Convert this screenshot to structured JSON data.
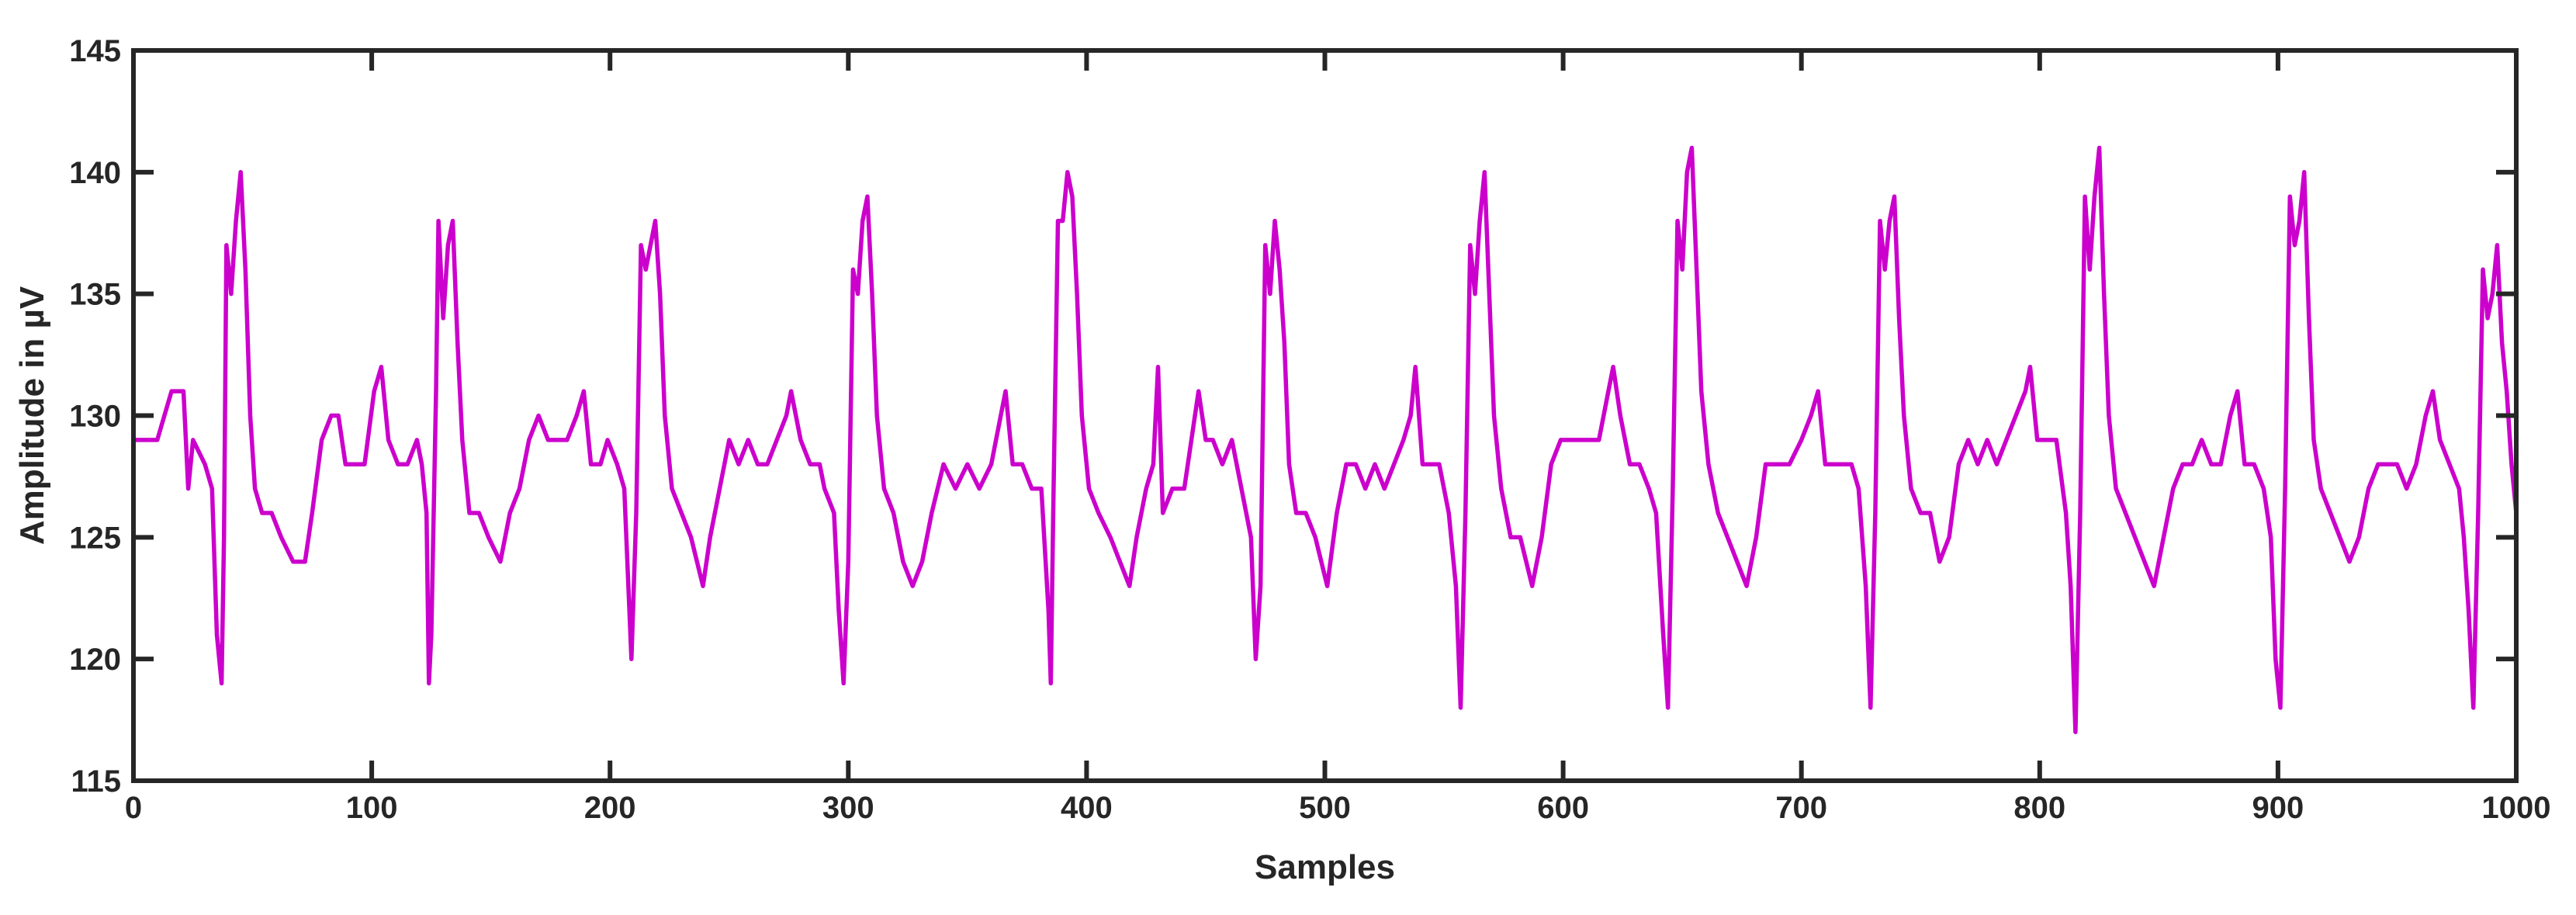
{
  "chart_data": {
    "type": "line",
    "title": "",
    "xlabel": "Samples",
    "ylabel": "Amplitude in µV",
    "xlim": [
      0,
      1000
    ],
    "ylim": [
      115,
      145
    ],
    "xticks": [
      0,
      100,
      200,
      300,
      400,
      500,
      600,
      700,
      800,
      900,
      1000
    ],
    "yticks": [
      115,
      120,
      125,
      130,
      135,
      140,
      145
    ],
    "grid": false,
    "legend": "none",
    "line_color": "#cc00cc",
    "series": [
      {
        "points": [
          [
            0,
            129
          ],
          [
            10,
            129
          ],
          [
            16,
            131
          ],
          [
            21,
            131
          ],
          [
            23,
            127
          ],
          [
            25,
            129
          ],
          [
            30,
            128
          ],
          [
            33,
            127
          ],
          [
            35,
            121
          ],
          [
            37,
            119
          ],
          [
            38,
            125
          ],
          [
            39,
            137
          ],
          [
            41,
            135
          ],
          [
            43,
            138
          ],
          [
            45,
            140
          ],
          [
            47,
            136
          ],
          [
            49,
            130
          ],
          [
            51,
            127
          ],
          [
            54,
            126
          ],
          [
            58,
            126
          ],
          [
            62,
            125
          ],
          [
            67,
            124
          ],
          [
            72,
            124
          ],
          [
            75,
            126
          ],
          [
            79,
            129
          ],
          [
            83,
            130
          ],
          [
            86,
            130
          ],
          [
            89,
            128
          ],
          [
            93,
            128
          ],
          [
            97,
            128
          ],
          [
            101,
            131
          ],
          [
            104,
            132
          ],
          [
            107,
            129
          ],
          [
            111,
            128
          ],
          [
            115,
            128
          ],
          [
            119,
            129
          ],
          [
            121,
            128
          ],
          [
            123,
            126
          ],
          [
            124,
            119
          ],
          [
            125,
            121
          ],
          [
            127,
            131
          ],
          [
            128,
            138
          ],
          [
            130,
            134
          ],
          [
            132,
            137
          ],
          [
            134,
            138
          ],
          [
            136,
            133
          ],
          [
            138,
            129
          ],
          [
            141,
            126
          ],
          [
            145,
            126
          ],
          [
            149,
            125
          ],
          [
            154,
            124
          ],
          [
            158,
            126
          ],
          [
            162,
            127
          ],
          [
            166,
            129
          ],
          [
            170,
            130
          ],
          [
            174,
            129
          ],
          [
            178,
            129
          ],
          [
            182,
            129
          ],
          [
            186,
            130
          ],
          [
            189,
            131
          ],
          [
            192,
            128
          ],
          [
            196,
            128
          ],
          [
            199,
            129
          ],
          [
            203,
            128
          ],
          [
            206,
            127
          ],
          [
            209,
            120
          ],
          [
            211,
            126
          ],
          [
            213,
            137
          ],
          [
            215,
            136
          ],
          [
            217,
            137
          ],
          [
            219,
            138
          ],
          [
            221,
            135
          ],
          [
            223,
            130
          ],
          [
            226,
            127
          ],
          [
            230,
            126
          ],
          [
            234,
            125
          ],
          [
            239,
            123
          ],
          [
            242,
            125
          ],
          [
            246,
            127
          ],
          [
            250,
            129
          ],
          [
            254,
            128
          ],
          [
            258,
            129
          ],
          [
            262,
            128
          ],
          [
            266,
            128
          ],
          [
            270,
            129
          ],
          [
            274,
            130
          ],
          [
            276,
            131
          ],
          [
            280,
            129
          ],
          [
            284,
            128
          ],
          [
            288,
            128
          ],
          [
            290,
            127
          ],
          [
            294,
            126
          ],
          [
            296,
            122
          ],
          [
            298,
            119
          ],
          [
            300,
            124
          ],
          [
            302,
            136
          ],
          [
            304,
            135
          ],
          [
            306,
            138
          ],
          [
            308,
            139
          ],
          [
            310,
            135
          ],
          [
            312,
            130
          ],
          [
            315,
            127
          ],
          [
            319,
            126
          ],
          [
            323,
            124
          ],
          [
            327,
            123
          ],
          [
            331,
            124
          ],
          [
            335,
            126
          ],
          [
            340,
            128
          ],
          [
            345,
            127
          ],
          [
            350,
            128
          ],
          [
            355,
            127
          ],
          [
            360,
            128
          ],
          [
            364,
            130
          ],
          [
            366,
            131
          ],
          [
            369,
            128
          ],
          [
            373,
            128
          ],
          [
            377,
            127
          ],
          [
            381,
            127
          ],
          [
            384,
            122
          ],
          [
            385,
            119
          ],
          [
            386,
            126
          ],
          [
            388,
            138
          ],
          [
            390,
            138
          ],
          [
            392,
            140
          ],
          [
            394,
            139
          ],
          [
            396,
            135
          ],
          [
            398,
            130
          ],
          [
            401,
            127
          ],
          [
            405,
            126
          ],
          [
            410,
            125
          ],
          [
            414,
            124
          ],
          [
            418,
            123
          ],
          [
            421,
            125
          ],
          [
            425,
            127
          ],
          [
            428,
            128
          ],
          [
            430,
            132
          ],
          [
            432,
            126
          ],
          [
            436,
            127
          ],
          [
            441,
            127
          ],
          [
            444,
            129
          ],
          [
            447,
            131
          ],
          [
            450,
            129
          ],
          [
            453,
            129
          ],
          [
            457,
            128
          ],
          [
            461,
            129
          ],
          [
            465,
            127
          ],
          [
            469,
            125
          ],
          [
            471,
            120
          ],
          [
            473,
            123
          ],
          [
            475,
            137
          ],
          [
            477,
            135
          ],
          [
            479,
            138
          ],
          [
            481,
            136
          ],
          [
            483,
            133
          ],
          [
            485,
            128
          ],
          [
            488,
            126
          ],
          [
            492,
            126
          ],
          [
            496,
            125
          ],
          [
            501,
            123
          ],
          [
            505,
            126
          ],
          [
            509,
            128
          ],
          [
            513,
            128
          ],
          [
            517,
            127
          ],
          [
            521,
            128
          ],
          [
            525,
            127
          ],
          [
            529,
            128
          ],
          [
            533,
            129
          ],
          [
            536,
            130
          ],
          [
            538,
            132
          ],
          [
            541,
            128
          ],
          [
            545,
            128
          ],
          [
            548,
            128
          ],
          [
            552,
            126
          ],
          [
            555,
            123
          ],
          [
            557,
            118
          ],
          [
            559,
            126
          ],
          [
            561,
            137
          ],
          [
            563,
            135
          ],
          [
            565,
            138
          ],
          [
            567,
            140
          ],
          [
            569,
            135
          ],
          [
            571,
            130
          ],
          [
            574,
            127
          ],
          [
            578,
            125
          ],
          [
            582,
            125
          ],
          [
            587,
            123
          ],
          [
            591,
            125
          ],
          [
            595,
            128
          ],
          [
            599,
            129
          ],
          [
            603,
            129
          ],
          [
            607,
            129
          ],
          [
            611,
            129
          ],
          [
            615,
            129
          ],
          [
            619,
            131
          ],
          [
            621,
            132
          ],
          [
            624,
            130
          ],
          [
            628,
            128
          ],
          [
            632,
            128
          ],
          [
            636,
            127
          ],
          [
            639,
            126
          ],
          [
            642,
            121
          ],
          [
            644,
            118
          ],
          [
            646,
            127
          ],
          [
            648,
            138
          ],
          [
            650,
            136
          ],
          [
            652,
            140
          ],
          [
            654,
            141
          ],
          [
            656,
            136
          ],
          [
            658,
            131
          ],
          [
            661,
            128
          ],
          [
            665,
            126
          ],
          [
            669,
            125
          ],
          [
            673,
            124
          ],
          [
            677,
            123
          ],
          [
            681,
            125
          ],
          [
            685,
            128
          ],
          [
            690,
            128
          ],
          [
            695,
            128
          ],
          [
            700,
            129
          ],
          [
            704,
            130
          ],
          [
            707,
            131
          ],
          [
            710,
            128
          ],
          [
            714,
            128
          ],
          [
            718,
            128
          ],
          [
            721,
            128
          ],
          [
            724,
            127
          ],
          [
            727,
            123
          ],
          [
            729,
            118
          ],
          [
            731,
            126
          ],
          [
            733,
            138
          ],
          [
            735,
            136
          ],
          [
            737,
            138
          ],
          [
            739,
            139
          ],
          [
            741,
            134
          ],
          [
            743,
            130
          ],
          [
            746,
            127
          ],
          [
            750,
            126
          ],
          [
            754,
            126
          ],
          [
            758,
            124
          ],
          [
            762,
            125
          ],
          [
            766,
            128
          ],
          [
            770,
            129
          ],
          [
            774,
            128
          ],
          [
            778,
            129
          ],
          [
            782,
            128
          ],
          [
            786,
            129
          ],
          [
            790,
            130
          ],
          [
            794,
            131
          ],
          [
            796,
            132
          ],
          [
            799,
            129
          ],
          [
            803,
            129
          ],
          [
            807,
            129
          ],
          [
            811,
            126
          ],
          [
            813,
            123
          ],
          [
            815,
            117
          ],
          [
            817,
            126
          ],
          [
            819,
            139
          ],
          [
            821,
            136
          ],
          [
            823,
            139
          ],
          [
            825,
            141
          ],
          [
            827,
            135
          ],
          [
            829,
            130
          ],
          [
            832,
            127
          ],
          [
            836,
            126
          ],
          [
            840,
            125
          ],
          [
            844,
            124
          ],
          [
            848,
            123
          ],
          [
            852,
            125
          ],
          [
            856,
            127
          ],
          [
            860,
            128
          ],
          [
            864,
            128
          ],
          [
            868,
            129
          ],
          [
            872,
            128
          ],
          [
            876,
            128
          ],
          [
            880,
            130
          ],
          [
            883,
            131
          ],
          [
            886,
            128
          ],
          [
            890,
            128
          ],
          [
            894,
            127
          ],
          [
            897,
            125
          ],
          [
            899,
            120
          ],
          [
            901,
            118
          ],
          [
            903,
            127
          ],
          [
            905,
            139
          ],
          [
            907,
            137
          ],
          [
            909,
            138
          ],
          [
            911,
            140
          ],
          [
            913,
            134
          ],
          [
            915,
            129
          ],
          [
            918,
            127
          ],
          [
            922,
            126
          ],
          [
            926,
            125
          ],
          [
            930,
            124
          ],
          [
            934,
            125
          ],
          [
            938,
            127
          ],
          [
            942,
            128
          ],
          [
            946,
            128
          ],
          [
            950,
            128
          ],
          [
            954,
            127
          ],
          [
            958,
            128
          ],
          [
            962,
            130
          ],
          [
            965,
            131
          ],
          [
            968,
            129
          ],
          [
            972,
            128
          ],
          [
            976,
            127
          ],
          [
            978,
            125
          ],
          [
            980,
            122
          ],
          [
            982,
            118
          ],
          [
            984,
            126
          ],
          [
            986,
            136
          ],
          [
            988,
            134
          ],
          [
            990,
            135
          ],
          [
            992,
            137
          ],
          [
            994,
            133
          ],
          [
            996,
            131
          ],
          [
            998,
            128
          ],
          [
            1000,
            126
          ]
        ]
      }
    ]
  }
}
